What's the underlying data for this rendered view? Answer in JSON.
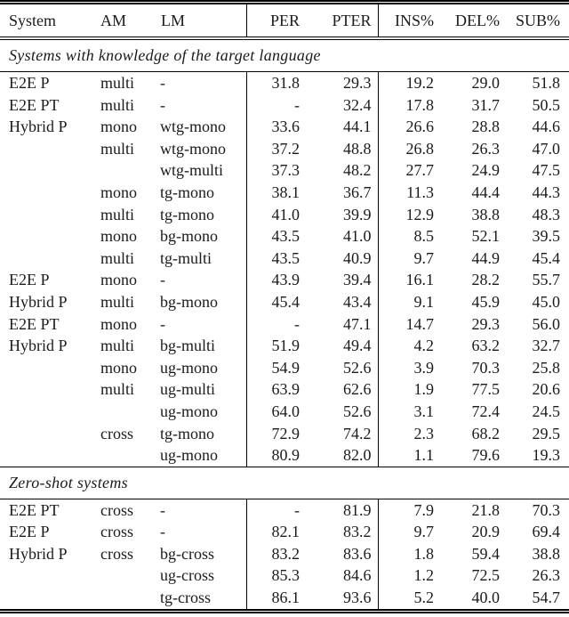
{
  "colors": {
    "text": "#1b1b1b",
    "rule": "#000000",
    "background": "#ffffff"
  },
  "table": {
    "columns": [
      {
        "key": "system",
        "label": "System"
      },
      {
        "key": "am",
        "label": "AM"
      },
      {
        "key": "lm",
        "label": "LM"
      },
      {
        "key": "per",
        "label": "PER"
      },
      {
        "key": "pter",
        "label": "PTER"
      },
      {
        "key": "ins",
        "label": "INS%"
      },
      {
        "key": "del",
        "label": "DEL%"
      },
      {
        "key": "sub",
        "label": "SUB%"
      }
    ],
    "sections": [
      {
        "title": "Systems with knowledge of the target language",
        "rows": [
          [
            "E2E P",
            "multi",
            "-",
            "31.8",
            "29.3",
            "19.2",
            "29.0",
            "51.8"
          ],
          [
            "E2E PT",
            "multi",
            "-",
            "-",
            "32.4",
            "17.8",
            "31.7",
            "50.5"
          ],
          [
            "Hybrid P",
            "mono",
            "wtg-mono",
            "33.6",
            "44.1",
            "26.6",
            "28.8",
            "44.6"
          ],
          [
            "",
            "multi",
            "wtg-mono",
            "37.2",
            "48.8",
            "26.8",
            "26.3",
            "47.0"
          ],
          [
            "",
            "",
            "wtg-multi",
            "37.3",
            "48.2",
            "27.7",
            "24.9",
            "47.5"
          ],
          [
            "",
            "mono",
            "tg-mono",
            "38.1",
            "36.7",
            "11.3",
            "44.4",
            "44.3"
          ],
          [
            "",
            "multi",
            "tg-mono",
            "41.0",
            "39.9",
            "12.9",
            "38.8",
            "48.3"
          ],
          [
            "",
            "mono",
            "bg-mono",
            "43.5",
            "41.0",
            "8.5",
            "52.1",
            "39.5"
          ],
          [
            "",
            "multi",
            "tg-multi",
            "43.5",
            "40.9",
            "9.7",
            "44.9",
            "45.4"
          ],
          [
            "E2E P",
            "mono",
            "-",
            "43.9",
            "39.4",
            "16.1",
            "28.2",
            "55.7"
          ],
          [
            "Hybrid P",
            "multi",
            "bg-mono",
            "45.4",
            "43.4",
            "9.1",
            "45.9",
            "45.0"
          ],
          [
            "E2E PT",
            "mono",
            "-",
            "-",
            "47.1",
            "14.7",
            "29.3",
            "56.0"
          ],
          [
            "Hybrid P",
            "multi",
            "bg-multi",
            "51.9",
            "49.4",
            "4.2",
            "63.2",
            "32.7"
          ],
          [
            "",
            "mono",
            "ug-mono",
            "54.9",
            "52.6",
            "3.9",
            "70.3",
            "25.8"
          ],
          [
            "",
            "multi",
            "ug-multi",
            "63.9",
            "62.6",
            "1.9",
            "77.5",
            "20.6"
          ],
          [
            "",
            "",
            "ug-mono",
            "64.0",
            "52.6",
            "3.1",
            "72.4",
            "24.5"
          ],
          [
            "",
            "cross",
            "tg-mono",
            "72.9",
            "74.2",
            "2.3",
            "68.2",
            "29.5"
          ],
          [
            "",
            "",
            "ug-mono",
            "80.9",
            "82.0",
            "1.1",
            "79.6",
            "19.3"
          ]
        ]
      },
      {
        "title": "Zero-shot systems",
        "rows": [
          [
            "E2E PT",
            "cross",
            "-",
            "-",
            "81.9",
            "7.9",
            "21.8",
            "70.3"
          ],
          [
            "E2E P",
            "cross",
            "-",
            "82.1",
            "83.2",
            "9.7",
            "20.9",
            "69.4"
          ],
          [
            "Hybrid P",
            "cross",
            "bg-cross",
            "83.2",
            "83.6",
            "1.8",
            "59.4",
            "38.8"
          ],
          [
            "",
            "",
            "ug-cross",
            "85.3",
            "84.6",
            "1.2",
            "72.5",
            "26.3"
          ],
          [
            "",
            "",
            "tg-cross",
            "86.1",
            "93.6",
            "5.2",
            "40.0",
            "54.7"
          ]
        ]
      }
    ]
  }
}
